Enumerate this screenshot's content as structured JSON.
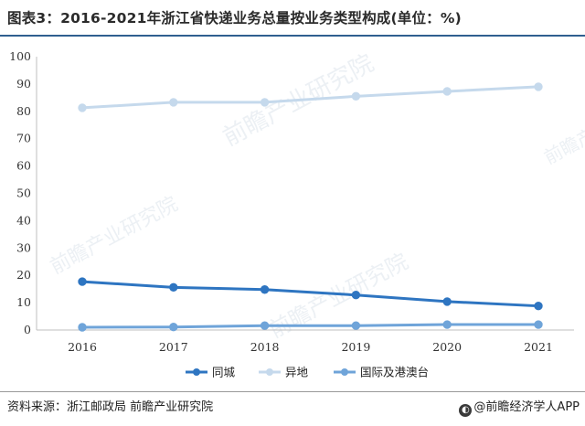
{
  "title": "图表3：2016-2021年浙江省快递业务总量按业务类型构成(单位：%)",
  "footer": {
    "source": "资料来源：浙江邮政局 前瞻产业研究院",
    "brand": "@前瞻经济学人APP"
  },
  "watermark": "前瞻产业研究院",
  "chart_data": {
    "type": "line",
    "x": [
      "2016",
      "2017",
      "2018",
      "2019",
      "2020",
      "2021"
    ],
    "ylim": [
      0,
      100
    ],
    "yticks": [
      0,
      10,
      20,
      30,
      40,
      50,
      60,
      70,
      80,
      90,
      100
    ],
    "grid": false,
    "legend_position": "bottom",
    "series": [
      {
        "name": "同城",
        "values": [
          17.7,
          15.6,
          14.8,
          12.8,
          10.4,
          8.8
        ],
        "color": "#2e75c1"
      },
      {
        "name": "异地",
        "values": [
          81.3,
          83.3,
          83.3,
          85.5,
          87.3,
          89.0
        ],
        "color": "#c5d9ec"
      },
      {
        "name": "国际及港澳台",
        "values": [
          1.0,
          1.1,
          1.6,
          1.6,
          2.0,
          2.0
        ],
        "color": "#6fa4d9"
      }
    ]
  }
}
